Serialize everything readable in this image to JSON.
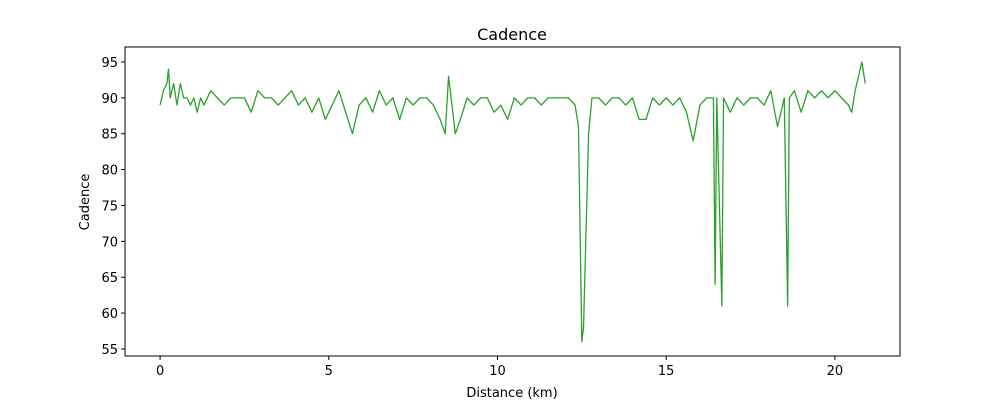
{
  "chart_data": {
    "type": "line",
    "title": "Cadence",
    "x_label": "Distance (km)",
    "y_label": "Cadence",
    "color": "#2ca02c",
    "x": [
      0,
      0.1,
      0.2,
      0.25,
      0.3,
      0.4,
      0.5,
      0.6,
      0.7,
      0.8,
      0.9,
      1.0,
      1.1,
      1.2,
      1.3,
      1.5,
      1.7,
      1.9,
      2.1,
      2.3,
      2.5,
      2.7,
      2.9,
      3.1,
      3.3,
      3.5,
      3.7,
      3.9,
      4.1,
      4.3,
      4.5,
      4.7,
      4.9,
      5.1,
      5.3,
      5.5,
      5.7,
      5.9,
      6.1,
      6.3,
      6.5,
      6.7,
      6.9,
      7.1,
      7.3,
      7.5,
      7.7,
      7.9,
      8.1,
      8.3,
      8.45,
      8.55,
      8.65,
      8.75,
      8.9,
      9.1,
      9.3,
      9.5,
      9.7,
      9.9,
      10.1,
      10.3,
      10.5,
      10.7,
      10.9,
      11.1,
      11.3,
      11.5,
      11.7,
      11.9,
      12.1,
      12.3,
      12.4,
      12.5,
      12.55,
      12.7,
      12.8,
      13.0,
      13.2,
      13.4,
      13.6,
      13.8,
      14.0,
      14.2,
      14.4,
      14.6,
      14.8,
      15.0,
      15.2,
      15.4,
      15.6,
      15.8,
      16.0,
      16.2,
      16.4,
      16.45,
      16.5,
      16.65,
      16.7,
      16.9,
      17.1,
      17.3,
      17.5,
      17.7,
      17.9,
      18.1,
      18.3,
      18.5,
      18.6,
      18.65,
      18.8,
      19.0,
      19.2,
      19.4,
      19.6,
      19.8,
      20.0,
      20.2,
      20.4,
      20.5,
      20.6,
      20.7,
      20.8,
      20.9
    ],
    "values": [
      89,
      91,
      92,
      94,
      90,
      92,
      89,
      92,
      90,
      90,
      89,
      90,
      88,
      90,
      89,
      91,
      90,
      89,
      90,
      90,
      90,
      88,
      91,
      90,
      90,
      89,
      90,
      91,
      89,
      90,
      88,
      90,
      87,
      89,
      91,
      88,
      85,
      89,
      90,
      88,
      91,
      89,
      90,
      87,
      90,
      89,
      90,
      90,
      89,
      87,
      85,
      93,
      89,
      85,
      87,
      90,
      89,
      90,
      90,
      88,
      89,
      87,
      90,
      89,
      90,
      90,
      89,
      90,
      90,
      90,
      90,
      89,
      86,
      56,
      58,
      85,
      90,
      90,
      89,
      90,
      90,
      89,
      90,
      87,
      87,
      90,
      89,
      90,
      89,
      90,
      88,
      84,
      89,
      90,
      90,
      64,
      90,
      61,
      90,
      88,
      90,
      89,
      90,
      90,
      89,
      91,
      86,
      90,
      61,
      90,
      91,
      88,
      91,
      90,
      91,
      90,
      91,
      90,
      89,
      88,
      91,
      93,
      95,
      92
    ],
    "xlim": [
      -1.04,
      21.93
    ],
    "ylim": [
      54.02,
      97.09
    ],
    "xticks": [
      0,
      5,
      10,
      15,
      20
    ],
    "yticks": [
      55,
      60,
      65,
      70,
      75,
      80,
      85,
      90,
      95
    ]
  }
}
